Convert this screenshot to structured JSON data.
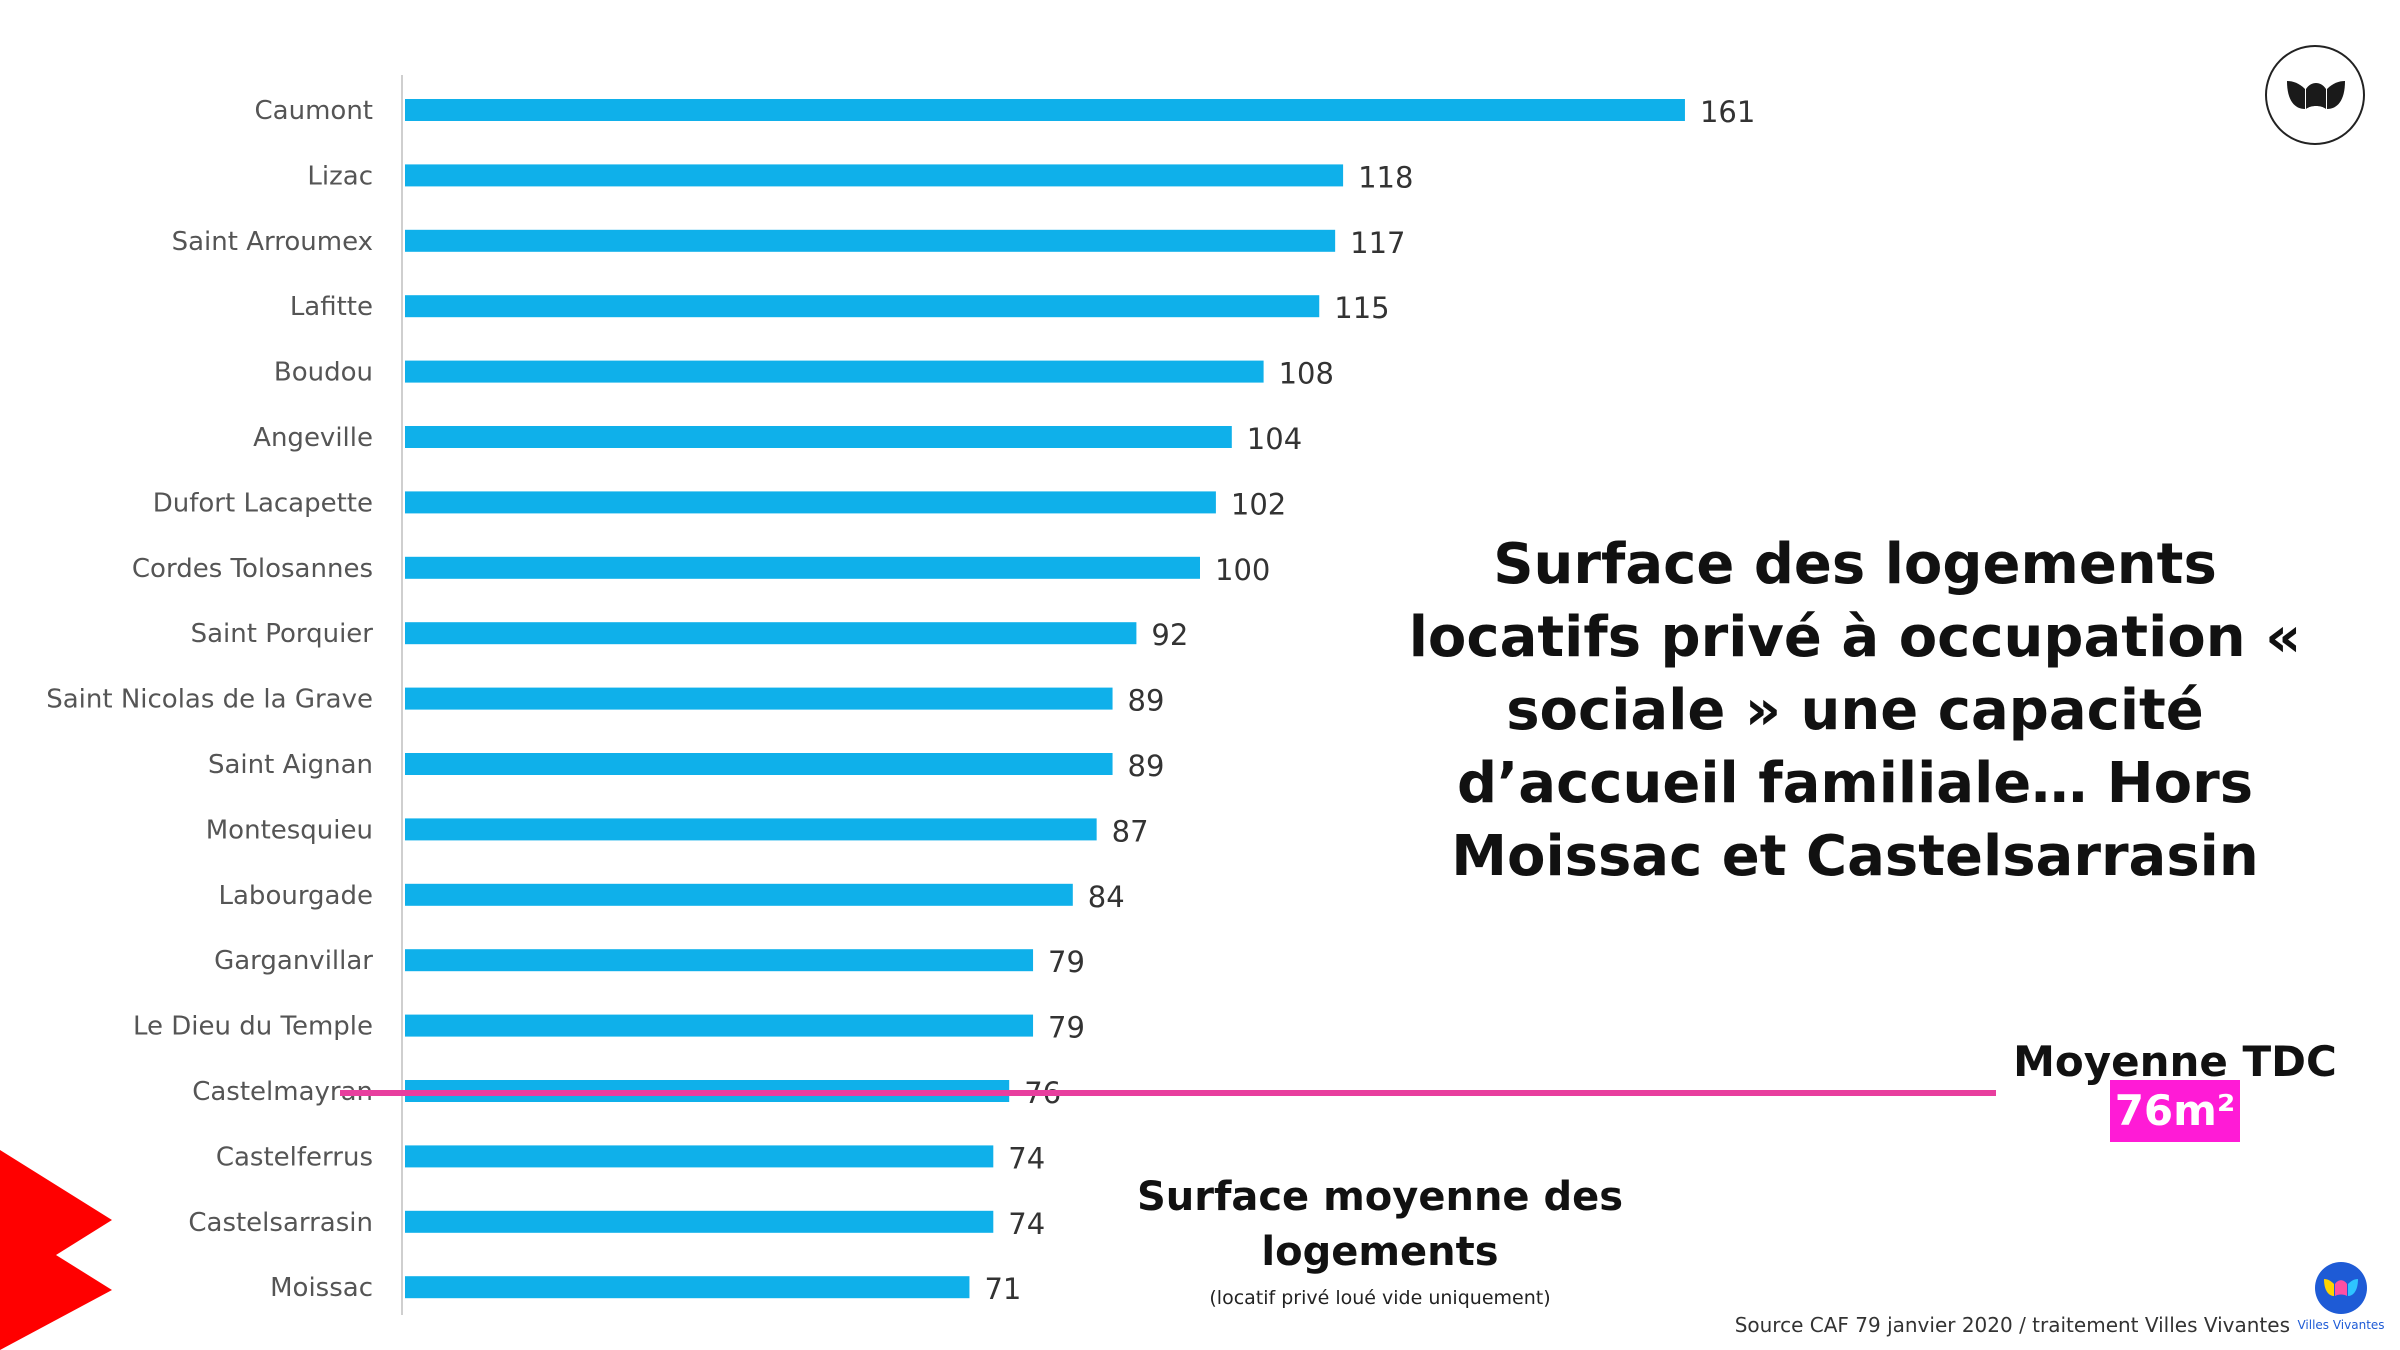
{
  "chart_data": {
    "type": "bar",
    "orientation": "horizontal",
    "categories": [
      "Caumont",
      "Lizac",
      "Saint Arroumex",
      "Lafitte",
      "Boudou",
      "Angeville",
      "Dufort Lacapette",
      "Cordes Tolosannes",
      "Saint Porquier",
      "Saint Nicolas de la Grave",
      "Saint Aignan",
      "Montesquieu",
      "Labourgade",
      "Garganvillar",
      "Le Dieu du Temple",
      "Castelmayran",
      "Castelferrus",
      "Castelsarrasin",
      "Moissac"
    ],
    "values": [
      161,
      118,
      117,
      115,
      108,
      104,
      102,
      100,
      92,
      89,
      89,
      87,
      84,
      79,
      79,
      76,
      74,
      74,
      71
    ],
    "xlim": [
      0,
      170
    ],
    "bar_color": "#0fb0ea",
    "reference_line": {
      "value": 76,
      "color": "#e83e9e"
    },
    "grid": false
  },
  "title": "Surface des logements locatifs privé à occupation « sociale » une capacité d’accueil familiale… Hors Moissac et Castelsarrasin",
  "average": {
    "label": "Moyenne TDC",
    "value": "76m²",
    "highlight_color": "#ff1bd6"
  },
  "subtitle": {
    "line": "Surface moyenne des logements",
    "note": "(locatif privé loué vide uniquement)"
  },
  "source": "Source CAF 79 janvier 2020 / traitement Villes Vivantes",
  "brand": {
    "name": "Villes Vivantes",
    "icon": "villes-vivantes-logo-icon",
    "color": "#1e5bd6"
  },
  "decoration": {
    "arrow_color": "#ff0000"
  }
}
